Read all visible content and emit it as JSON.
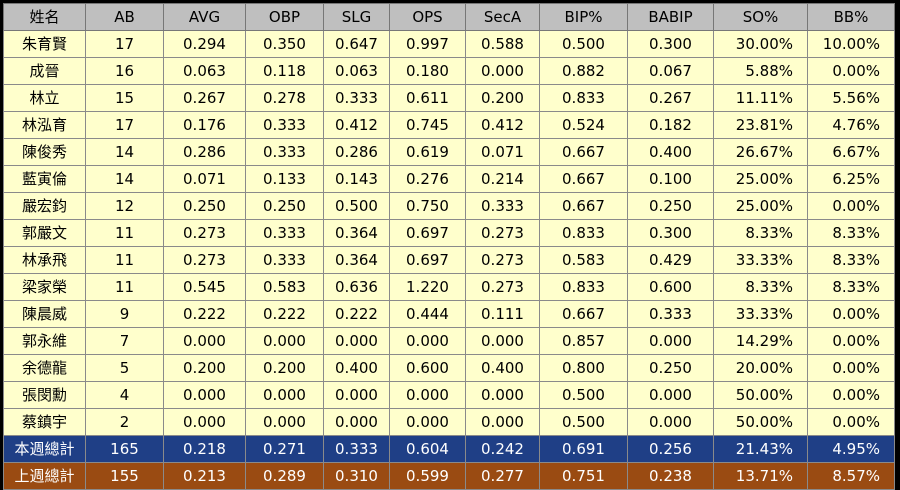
{
  "table": {
    "headers": [
      "姓名",
      "AB",
      "AVG",
      "OBP",
      "SLG",
      "OPS",
      "SecA",
      "BIP%",
      "BABIP",
      "SO%",
      "BB%"
    ],
    "rows": [
      [
        "朱育賢",
        "17",
        "0.294",
        "0.350",
        "0.647",
        "0.997",
        "0.588",
        "0.500",
        "0.300",
        "30.00%",
        "10.00%"
      ],
      [
        "成晉",
        "16",
        "0.063",
        "0.118",
        "0.063",
        "0.180",
        "0.000",
        "0.882",
        "0.067",
        "5.88%",
        "0.00%"
      ],
      [
        "林立",
        "15",
        "0.267",
        "0.278",
        "0.333",
        "0.611",
        "0.200",
        "0.833",
        "0.267",
        "11.11%",
        "5.56%"
      ],
      [
        "林泓育",
        "17",
        "0.176",
        "0.333",
        "0.412",
        "0.745",
        "0.412",
        "0.524",
        "0.182",
        "23.81%",
        "4.76%"
      ],
      [
        "陳俊秀",
        "14",
        "0.286",
        "0.333",
        "0.286",
        "0.619",
        "0.071",
        "0.667",
        "0.400",
        "26.67%",
        "6.67%"
      ],
      [
        "藍寅倫",
        "14",
        "0.071",
        "0.133",
        "0.143",
        "0.276",
        "0.214",
        "0.667",
        "0.100",
        "25.00%",
        "6.25%"
      ],
      [
        "嚴宏鈞",
        "12",
        "0.250",
        "0.250",
        "0.500",
        "0.750",
        "0.333",
        "0.667",
        "0.250",
        "25.00%",
        "0.00%"
      ],
      [
        "郭嚴文",
        "11",
        "0.273",
        "0.333",
        "0.364",
        "0.697",
        "0.273",
        "0.833",
        "0.300",
        "8.33%",
        "8.33%"
      ],
      [
        "林承飛",
        "11",
        "0.273",
        "0.333",
        "0.364",
        "0.697",
        "0.273",
        "0.583",
        "0.429",
        "33.33%",
        "8.33%"
      ],
      [
        "梁家榮",
        "11",
        "0.545",
        "0.583",
        "0.636",
        "1.220",
        "0.273",
        "0.833",
        "0.600",
        "8.33%",
        "8.33%"
      ],
      [
        "陳晨威",
        "9",
        "0.222",
        "0.222",
        "0.222",
        "0.444",
        "0.111",
        "0.667",
        "0.333",
        "33.33%",
        "0.00%"
      ],
      [
        "郭永維",
        "7",
        "0.000",
        "0.000",
        "0.000",
        "0.000",
        "0.000",
        "0.857",
        "0.000",
        "14.29%",
        "0.00%"
      ],
      [
        "余德龍",
        "5",
        "0.200",
        "0.200",
        "0.400",
        "0.600",
        "0.400",
        "0.800",
        "0.250",
        "20.00%",
        "0.00%"
      ],
      [
        "張閔勳",
        "4",
        "0.000",
        "0.000",
        "0.000",
        "0.000",
        "0.000",
        "0.500",
        "0.000",
        "50.00%",
        "0.00%"
      ],
      [
        "蔡鎮宇",
        "2",
        "0.000",
        "0.000",
        "0.000",
        "0.000",
        "0.000",
        "0.500",
        "0.000",
        "50.00%",
        "0.00%"
      ]
    ],
    "totals": [
      [
        "本週總計",
        "165",
        "0.218",
        "0.271",
        "0.333",
        "0.604",
        "0.242",
        "0.691",
        "0.256",
        "21.43%",
        "4.95%"
      ],
      [
        "上週總計",
        "155",
        "0.213",
        "0.289",
        "0.310",
        "0.599",
        "0.277",
        "0.751",
        "0.238",
        "13.71%",
        "8.57%"
      ]
    ]
  },
  "colors": {
    "header_bg": "#bfbfbf",
    "row_bg": "#ffffcc",
    "this_week_bg": "#1f3f86",
    "last_week_bg": "#9a4b12",
    "border": "#8a8a8a",
    "background": "#000000"
  }
}
